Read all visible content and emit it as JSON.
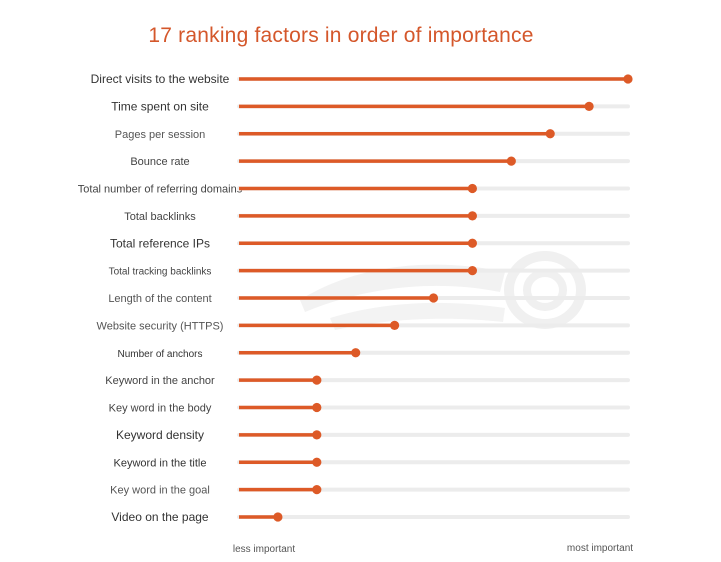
{
  "colors": {
    "accent": "#dd5a27",
    "track": "#ececec",
    "title": "#d4572b",
    "label": "#444444",
    "watermark": "#f2f2f2"
  },
  "watermark": {
    "icon": "semrush-logo-watermark"
  },
  "chart_data": {
    "type": "lollipop",
    "title": "17 ranking factors in order of importance",
    "orientation": "horizontal",
    "xlim": [
      0,
      100
    ],
    "scale_labels": {
      "low": "less important",
      "high": "most important"
    },
    "grid": false,
    "categories": [
      "Direct visits to the website",
      "Time spent on site",
      "Pages per session",
      "Bounce rate",
      "Total number of referring domains",
      "Total backlinks",
      "Total reference IPs",
      "Total tracking backlinks",
      "Length of the content",
      "Website security (HTTPS)",
      "Number of anchors",
      "Keyword in the anchor",
      "Key word in the body",
      "Keyword density",
      "Keyword in the title",
      "Key word in the goal",
      "Video on the page"
    ],
    "values": [
      100,
      90,
      80,
      70,
      60,
      60,
      60,
      60,
      50,
      40,
      30,
      20,
      20,
      20,
      20,
      20,
      10
    ]
  }
}
